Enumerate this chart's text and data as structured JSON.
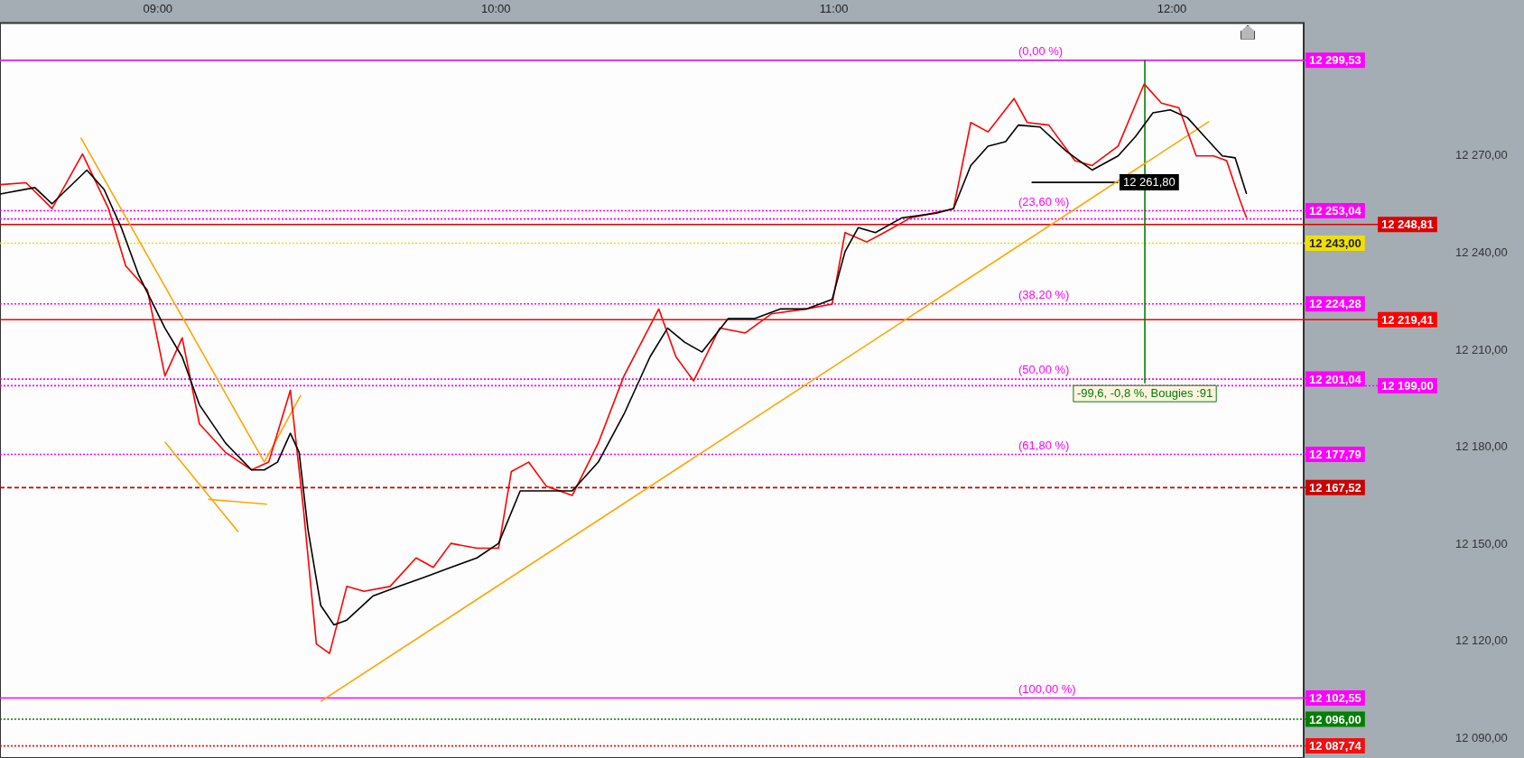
{
  "chart_data": {
    "type": "line",
    "xlim": [
      8.533,
      12.39
    ],
    "ylim": [
      12084,
      12311
    ],
    "xticks": [
      {
        "value": 9,
        "label": "09:00"
      },
      {
        "value": 10,
        "label": "10:00"
      },
      {
        "value": 11,
        "label": "11:00"
      },
      {
        "value": 12,
        "label": "12:00"
      }
    ],
    "yticks": [
      {
        "value": 12090,
        "label": "12 090,00"
      },
      {
        "value": 12120,
        "label": "12 120,00"
      },
      {
        "value": 12150,
        "label": "12 150,00"
      },
      {
        "value": 12180,
        "label": "12 180,00"
      },
      {
        "value": 12210,
        "label": "12 210,00"
      },
      {
        "value": 12240,
        "label": "12 240,00"
      },
      {
        "value": 12270,
        "label": "12 270,00"
      }
    ],
    "grid": false,
    "legend": false,
    "marker": "none",
    "series": [
      {
        "type": "line",
        "color": "#000000",
        "x": [
          8.533,
          8.636,
          8.687,
          8.79,
          8.841,
          8.892,
          8.944,
          9.021,
          9.072,
          9.123,
          9.2,
          9.277,
          9.315,
          9.354,
          9.392,
          9.418,
          9.444,
          9.482,
          9.521,
          9.559,
          9.636,
          9.713,
          9.79,
          9.867,
          9.944,
          10.008,
          10.072,
          10.149,
          10.226,
          10.303,
          10.379,
          10.456,
          10.508,
          10.559,
          10.61,
          10.687,
          10.764,
          10.841,
          10.918,
          10.995,
          11.033,
          11.072,
          11.123,
          11.2,
          11.303,
          11.354,
          11.405,
          11.456,
          11.508,
          11.546,
          11.61,
          11.687,
          11.764,
          11.841,
          11.892,
          11.944,
          11.995,
          12.046,
          12.097,
          12.149,
          12.187,
          12.221
        ],
        "values": [
          12258.2,
          12260.2,
          12255.2,
          12265.6,
          12259.6,
          12247.8,
          12233.0,
          12216.8,
          12207.9,
          12193.1,
          12181.3,
          12173.0,
          12173.0,
          12175.4,
          12184.3,
          12178.4,
          12154.7,
          12131.1,
          12125.1,
          12126.6,
          12134.0,
          12137.0,
          12139.9,
          12142.9,
          12145.8,
          12150.3,
          12166.5,
          12166.5,
          12166.5,
          12175.4,
          12190.2,
          12207.9,
          12216.8,
          12212.4,
          12209.4,
          12219.7,
          12219.7,
          12222.7,
          12222.7,
          12225.7,
          12240.4,
          12247.8,
          12246.3,
          12250.8,
          12252.3,
          12253.7,
          12267.0,
          12273.0,
          12274.4,
          12279.5,
          12278.9,
          12271.5,
          12265.6,
          12270.0,
          12275.9,
          12283.3,
          12284.2,
          12281.8,
          12275.9,
          12270.0,
          12269.4,
          12258.2
        ]
      },
      {
        "type": "line",
        "color": "#ff0000",
        "x": [
          8.533,
          8.61,
          8.687,
          8.777,
          8.854,
          8.905,
          8.969,
          9.021,
          9.072,
          9.123,
          9.2,
          9.277,
          9.328,
          9.392,
          9.431,
          9.469,
          9.508,
          9.559,
          9.61,
          9.687,
          9.764,
          9.815,
          9.867,
          9.944,
          10.008,
          10.046,
          10.097,
          10.149,
          10.226,
          10.303,
          10.379,
          10.482,
          10.533,
          10.585,
          10.662,
          10.738,
          10.815,
          10.918,
          10.995,
          11.033,
          11.097,
          11.149,
          11.226,
          11.354,
          11.405,
          11.456,
          11.533,
          11.572,
          11.636,
          11.713,
          11.764,
          11.841,
          11.918,
          11.969,
          12.021,
          12.072,
          12.123,
          12.162,
          12.2,
          12.221
        ],
        "values": [
          12261.1,
          12261.7,
          12253.7,
          12270.6,
          12253.7,
          12236.0,
          12228.6,
          12202.0,
          12213.8,
          12187.2,
          12178.4,
          12173.0,
          12175.4,
          12197.6,
          12160.6,
          12119.2,
          12116.3,
          12137.0,
          12135.5,
          12137.0,
          12145.8,
          12142.9,
          12150.3,
          12148.8,
          12148.8,
          12172.5,
          12175.4,
          12168.0,
          12165.1,
          12181.3,
          12202.0,
          12222.7,
          12207.9,
          12200.5,
          12216.8,
          12215.3,
          12221.2,
          12222.7,
          12224.2,
          12246.3,
          12243.4,
          12246.3,
          12250.8,
          12253.7,
          12280.3,
          12277.4,
          12287.7,
          12280.3,
          12279.5,
          12268.5,
          12267.0,
          12273.0,
          12292.2,
          12286.3,
          12284.8,
          12270.0,
          12270.0,
          12268.5,
          12256.7,
          12250.8
        ]
      },
      {
        "type": "line",
        "color": "#ffa500",
        "x": [
          8.772,
          9.315
        ],
        "values": [
          12275.6,
          12175.4
        ]
      },
      {
        "type": "line",
        "color": "#ffa500",
        "x": [
          9.021,
          9.238
        ],
        "values": [
          12181.6,
          12153.8
        ]
      },
      {
        "type": "line",
        "color": "#ffa500",
        "x": [
          9.149,
          9.323
        ],
        "values": [
          12163.9,
          12162.4
        ]
      },
      {
        "type": "line",
        "color": "#ffa500",
        "x": [
          9.315,
          9.423
        ],
        "values": [
          12175.4,
          12196.1
        ]
      },
      {
        "type": "line",
        "color": "#ffa500",
        "x": [
          9.482,
          12.11
        ],
        "values": [
          12101.5,
          12280.6
        ]
      },
      {
        "type": "line",
        "color": "#000000",
        "x": [
          11.585,
          11.841
        ],
        "values": [
          12261.8,
          12261.8
        ]
      },
      {
        "type": "line",
        "color": "#008000",
        "x": [
          11.92,
          11.92
        ],
        "values": [
          12299.5,
          12199.9
        ]
      }
    ],
    "ref_lines": [
      {
        "axis": "y",
        "value": 12299.53,
        "color": "#33dd33",
        "line_style": "solid"
      },
      {
        "axis": "y",
        "value": 12299.53,
        "label": "12 299,53",
        "color": "#ff00ff",
        "line_style": "solid"
      },
      {
        "axis": "y",
        "value": 12253.04,
        "label": "12 253,04",
        "color": "#ff00ff",
        "line_style": "dotted"
      },
      {
        "axis": "y",
        "value": 12250.5,
        "color": "#ff00ff",
        "line_style": "dotted"
      },
      {
        "axis": "y",
        "value": 12248.81,
        "label": "12 248,81",
        "color": "#dd0000",
        "line_style": "solid"
      },
      {
        "axis": "y",
        "value": 12243.0,
        "label": "12 243,00",
        "color": "#f0e000",
        "line_style": "dotted"
      },
      {
        "axis": "y",
        "value": 12224.28,
        "label": "12 224,28",
        "color": "#ff00ff",
        "line_style": "dotted"
      },
      {
        "axis": "y",
        "value": 12219.41,
        "label": "12 219,41",
        "color": "#ff0000",
        "line_style": "solid"
      },
      {
        "axis": "y",
        "value": 12201.04,
        "label": "12 201,04",
        "color": "#ff00ff",
        "line_style": "dotted"
      },
      {
        "axis": "y",
        "value": 12199.0,
        "label": "12 199,00",
        "color": "#ff00ff",
        "line_style": "dotted"
      },
      {
        "axis": "y",
        "value": 12177.79,
        "label": "12 177,79",
        "color": "#ff00ff",
        "line_style": "dotted"
      },
      {
        "axis": "y",
        "value": 12167.52,
        "label": "12 167,52",
        "color": "#cc0000",
        "line_style": "dashed"
      },
      {
        "axis": "y",
        "value": 12102.55,
        "label": "12 102,55",
        "color": "#ff00ff",
        "line_style": "solid"
      },
      {
        "axis": "y",
        "value": 12096.0,
        "label": "12 096,00",
        "color": "#008000",
        "line_style": "dotted"
      },
      {
        "axis": "y",
        "value": 12087.74,
        "label": "12 087,74",
        "color": "#ee1111",
        "line_style": "dotted"
      }
    ],
    "annotations": [
      {
        "text": "(0,00 %)",
        "x": 11.546,
        "y": 12299.53
      },
      {
        "text": "(23,60 %)",
        "x": 11.546,
        "y": 12253.04
      },
      {
        "text": "(38,20 %)",
        "x": 11.546,
        "y": 12224.28
      },
      {
        "text": "(50,00 %)",
        "x": 11.546,
        "y": 12201.04
      },
      {
        "text": "(61,80 %)",
        "x": 11.546,
        "y": 12177.79
      },
      {
        "text": "(100,00 %)",
        "x": 11.546,
        "y": 12102.55
      },
      {
        "text": "12 261,80",
        "x": 11.845,
        "y": 12261.8
      },
      {
        "text": "-99,6, -0,8 %, Bougies :91",
        "x": 11.92,
        "y": 12199.9
      }
    ]
  }
}
